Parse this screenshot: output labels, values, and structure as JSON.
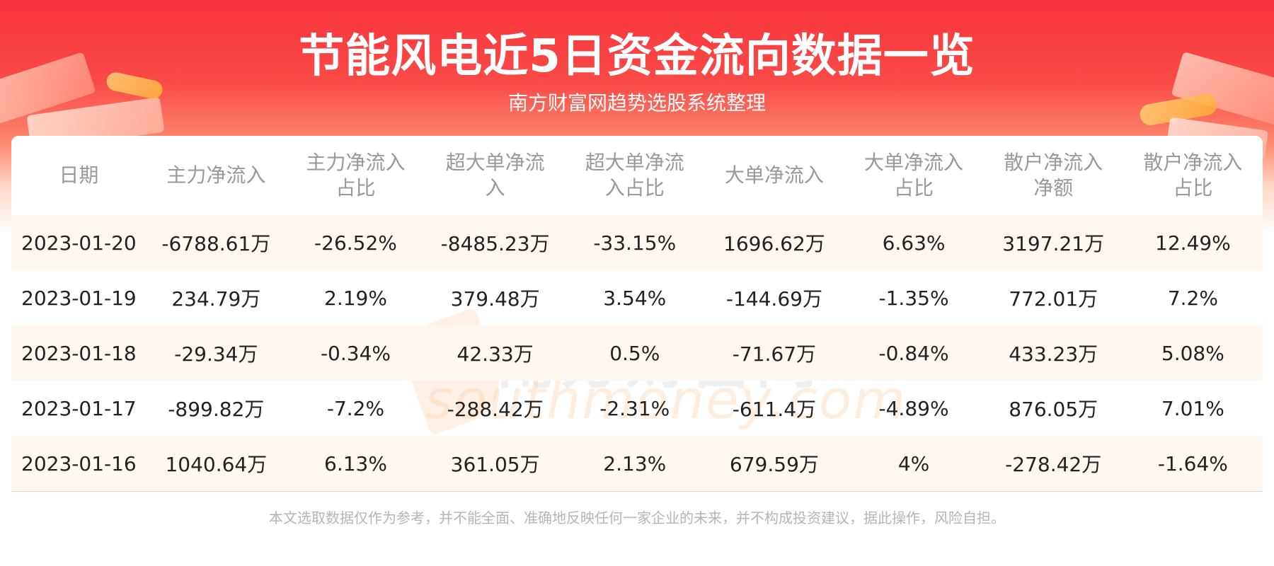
{
  "header": {
    "title": "节能风电近5日资金流向数据一览",
    "subtitle": "南方财富网趋势选股系统整理"
  },
  "watermark": {
    "cn": "南方财富网",
    "en": "southmoney.com"
  },
  "table": {
    "columns": [
      [
        "日期"
      ],
      [
        "主力净流入"
      ],
      [
        "主力净流入",
        "占比"
      ],
      [
        "超大单净流",
        "入"
      ],
      [
        "超大单净流",
        "入占比"
      ],
      [
        "大单净流入"
      ],
      [
        "大单净流入",
        "占比"
      ],
      [
        "散户净流入",
        "净额"
      ],
      [
        "散户净流入",
        "占比"
      ]
    ],
    "rows": [
      [
        "2023-01-20",
        "-6788.61万",
        "-26.52%",
        "-8485.23万",
        "-33.15%",
        "1696.62万",
        "6.63%",
        "3197.21万",
        "12.49%"
      ],
      [
        "2023-01-19",
        "234.79万",
        "2.19%",
        "379.48万",
        "3.54%",
        "-144.69万",
        "-1.35%",
        "772.01万",
        "7.2%"
      ],
      [
        "2023-01-18",
        "-29.34万",
        "-0.34%",
        "42.33万",
        "0.5%",
        "-71.67万",
        "-0.84%",
        "433.23万",
        "5.08%"
      ],
      [
        "2023-01-17",
        "-899.82万",
        "-7.2%",
        "-288.42万",
        "-2.31%",
        "-611.4万",
        "-4.89%",
        "876.05万",
        "7.01%"
      ],
      [
        "2023-01-16",
        "1040.64万",
        "6.13%",
        "361.05万",
        "2.13%",
        "679.59万",
        "4%",
        "-278.42万",
        "-1.64%"
      ]
    ]
  },
  "footer": {
    "disclaimer": "本文选取数据仅作为参考，并不能全面、准确地反映任何一家企业的未来，并不构成投资建议，据此操作，风险自担。"
  },
  "colors": {
    "banner_red": "#f8343c",
    "header_text": "#999999",
    "body_text": "#222222",
    "row_shade": "#fff8f1",
    "footer_text": "#b5b5b5"
  }
}
